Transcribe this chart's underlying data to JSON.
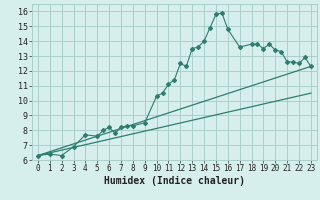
{
  "title": "",
  "xlabel": "Humidex (Indice chaleur)",
  "ylabel": "",
  "x_ticks": [
    0,
    1,
    2,
    3,
    4,
    5,
    6,
    7,
    8,
    9,
    10,
    11,
    12,
    13,
    14,
    15,
    16,
    17,
    18,
    19,
    20,
    21,
    22,
    23
  ],
  "y_ticks": [
    6,
    7,
    8,
    9,
    10,
    11,
    12,
    13,
    14,
    15,
    16
  ],
  "xlim": [
    -0.5,
    23.5
  ],
  "ylim": [
    6,
    16.5
  ],
  "line_color": "#2e7d6e",
  "bg_color": "#d6efec",
  "grid_color": "#aacec9",
  "humidex_x": [
    0,
    1,
    2,
    3,
    4,
    5,
    5.5,
    6,
    6.5,
    7,
    7.5,
    8,
    9,
    10,
    10.5,
    11,
    11.5,
    12,
    12.5,
    13,
    13.5,
    14,
    14.5,
    15,
    15.5,
    16,
    17,
    18,
    18.5,
    19,
    19.5,
    20,
    20.5,
    21,
    21.5,
    22,
    22.5,
    23
  ],
  "humidex_y": [
    6.3,
    6.4,
    6.3,
    6.9,
    7.7,
    7.6,
    8.0,
    8.2,
    7.8,
    8.2,
    8.3,
    8.3,
    8.5,
    10.3,
    10.5,
    11.1,
    11.4,
    12.5,
    12.3,
    13.5,
    13.6,
    14.0,
    14.9,
    15.8,
    15.9,
    14.8,
    13.6,
    13.8,
    13.8,
    13.5,
    13.8,
    13.4,
    13.3,
    12.6,
    12.6,
    12.5,
    12.9,
    12.3
  ],
  "line1_x": [
    0,
    23
  ],
  "line1_y": [
    6.3,
    12.3
  ],
  "line2_x": [
    0,
    23
  ],
  "line2_y": [
    6.3,
    10.5
  ],
  "xlabel_fontsize": 7,
  "tick_fontsize": 5.5
}
